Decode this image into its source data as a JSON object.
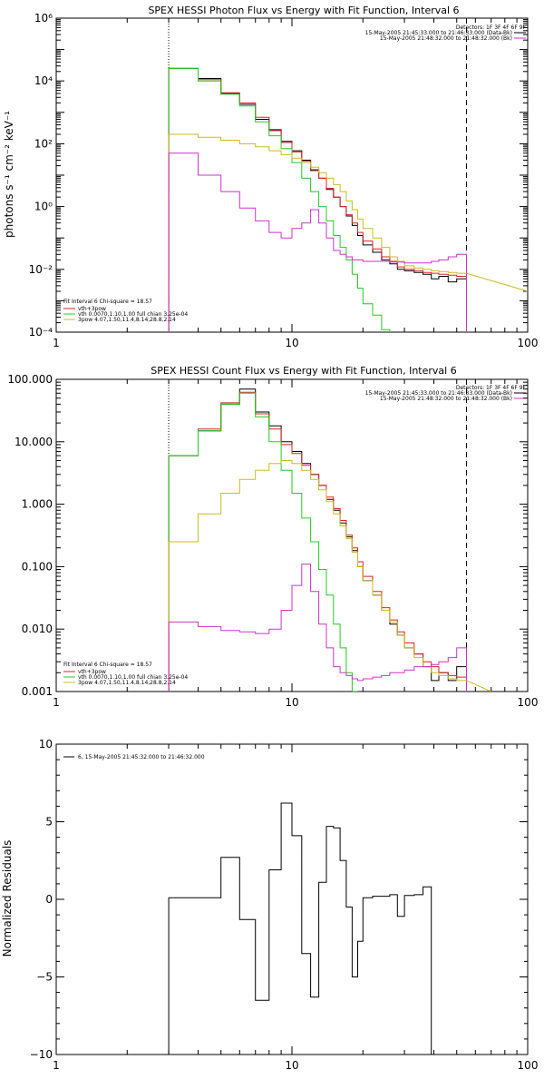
{
  "chart_data": [
    {
      "type": "line",
      "title": "SPEX HESSI Photon Flux vs Energy with Fit Function, Interval 6",
      "ylabel": "photons s⁻¹ cm⁻² keV⁻¹",
      "xlabel": "",
      "xscale": "log",
      "yscale": "log",
      "xlim": [
        1,
        100
      ],
      "ylim": [
        0.0001,
        1000000
      ],
      "xticks": [
        "1",
        "10",
        "100"
      ],
      "yticks": [
        "10⁻⁴",
        "10⁻²",
        "10⁰",
        "10²",
        "10⁴",
        "10⁶"
      ],
      "detectors": "Detectors: 1F 3F 4F 6F 9F",
      "time_lines": [
        {
          "text": "15-May-2005 21:45:33.000 to 21:46:33.000 (Data-Bk)",
          "color": "#000000"
        },
        {
          "text": "15-May-2005 21:48:32.000 to 21:48:32.000 (Bk)",
          "color": "#cc33cc"
        }
      ],
      "fit_legend": {
        "header": "Fit Interval  6    Chi-square = 18.57",
        "items": [
          {
            "text": "vth+3pow",
            "color": "#dd2222"
          },
          {
            "text": "vth 0.0070,1.10,1.00  full chian 3.25e-04",
            "color": "#22cc22"
          },
          {
            "text": "3pow 4.07,1.50,11.4,8.14,28.8,2.14",
            "color": "#ccbb22"
          }
        ]
      },
      "vlines": [
        {
          "x": 3,
          "style": "dotted"
        },
        {
          "x": 55,
          "style": "dashed"
        }
      ],
      "edges": [
        3,
        4,
        5,
        6,
        7,
        8,
        9,
        10,
        11,
        12,
        13,
        14,
        15,
        16,
        17,
        18,
        19,
        20,
        22,
        24,
        26,
        28,
        30,
        33,
        36,
        39,
        42,
        46,
        50,
        55
      ],
      "series": [
        {
          "name": "Data-Bk",
          "color": "#000000",
          "values": [
            25000,
            12000,
            4000,
            1800,
            600,
            280,
            120,
            60,
            30,
            14,
            8,
            3.5,
            2,
            1,
            0.5,
            0.25,
            0.12,
            0.06,
            0.035,
            0.02,
            0.015,
            0.01,
            0.009,
            0.008,
            0.007,
            0.005,
            0.006,
            0.004,
            0.005
          ]
        },
        {
          "name": "vth+3pow",
          "color": "#dd2222",
          "values": [
            25000,
            11000,
            4200,
            2000,
            700,
            260,
            110,
            55,
            28,
            15,
            8,
            3.8,
            2,
            1,
            0.55,
            0.3,
            0.15,
            0.08,
            0.045,
            0.025,
            0.018,
            0.012,
            0.01,
            0.009,
            0.008,
            0.0075,
            0.007,
            0.0065,
            0.006
          ]
        },
        {
          "name": "vth",
          "color": "#22cc22",
          "values": [
            25000,
            10000,
            3800,
            1600,
            500,
            180,
            70,
            25,
            8,
            3,
            1,
            0.35,
            0.12,
            0.05,
            0.02,
            0.007,
            0.0025,
            0.0008,
            0.00035,
            0.00012
          ]
        },
        {
          "name": "3pow",
          "color": "#ccbb22",
          "values": [
            200,
            160,
            130,
            100,
            80,
            60,
            45,
            35,
            25,
            18,
            12,
            8,
            5,
            3,
            1.5,
            0.8,
            0.4,
            0.2,
            0.1,
            0.05,
            0.025,
            0.018,
            0.013,
            0.011,
            0.01,
            0.009,
            0.0085,
            0.008,
            0.0075
          ]
        },
        {
          "name": "Bk",
          "color": "#cc33cc",
          "values": [
            50,
            10,
            3,
            0.9,
            0.35,
            0.15,
            0.1,
            0.2,
            0.3,
            0.8,
            0.3,
            0.1,
            0.04,
            0.03,
            0.025,
            0.02,
            0.02,
            0.018,
            0.018,
            0.018,
            0.017,
            0.017,
            0.016,
            0.016,
            0.016,
            0.018,
            0.02,
            0.025,
            0.03
          ]
        }
      ],
      "tail": {
        "x": [
          55,
          100
        ],
        "values": [
          0.0075,
          0.002
        ],
        "color": "#ccbb22"
      }
    },
    {
      "type": "line",
      "title": "SPEX HESSI Count Flux vs Energy with Fit Function, Interval 6",
      "ylabel": "",
      "xscale": "log",
      "yscale": "log",
      "xlim": [
        1,
        100
      ],
      "ylim": [
        0.001,
        100
      ],
      "xticks": [
        "1",
        "10",
        "100"
      ],
      "yticks": [
        "0.001",
        "0.010",
        "0.100",
        "1.000",
        "10.000",
        "100.000"
      ],
      "detectors": "Detectors: 1F 3F 4F 6F 9F",
      "time_lines": [
        {
          "text": "15-May-2005 21:45:33.000 to 21:46:33.000 (Data-Bk)",
          "color": "#000000"
        },
        {
          "text": "15-May-2005 21:48:32.000 to 21:48:32.000 (Bk)",
          "color": "#cc33cc"
        }
      ],
      "fit_legend": {
        "header": "Fit Interval  6    Chi-square = 18.57",
        "items": [
          {
            "text": "vth+3pow",
            "color": "#dd2222"
          },
          {
            "text": "vth 0.0070,1.10,1.00  full chian 3.25e-04",
            "color": "#22cc22"
          },
          {
            "text": "3pow 4.07,1.50,11.4,8.14,28.8,2.14",
            "color": "#ccbb22"
          }
        ]
      },
      "vlines": [
        {
          "x": 3,
          "style": "dotted"
        },
        {
          "x": 55,
          "style": "dashed"
        }
      ],
      "edges": [
        3,
        4,
        5,
        6,
        7,
        8,
        9,
        10,
        11,
        12,
        13,
        14,
        15,
        16,
        17,
        18,
        19,
        20,
        22,
        24,
        26,
        28,
        30,
        33,
        36,
        39,
        42,
        46,
        50,
        55
      ],
      "series": [
        {
          "name": "Data-Bk",
          "color": "#000000",
          "values": [
            6,
            15,
            40,
            70,
            30,
            18,
            10,
            7,
            4.5,
            3,
            2,
            1.2,
            0.8,
            0.5,
            0.3,
            0.18,
            0.1,
            0.06,
            0.035,
            0.02,
            0.012,
            0.008,
            0.005,
            0.004,
            0.0025,
            0.0015,
            0.002,
            0.0015,
            0.0025
          ]
        },
        {
          "name": "vth+3pow",
          "color": "#dd2222",
          "values": [
            6,
            16,
            42,
            62,
            28,
            16,
            9,
            6.5,
            4.2,
            3,
            2,
            1.3,
            0.85,
            0.55,
            0.32,
            0.2,
            0.12,
            0.07,
            0.04,
            0.022,
            0.014,
            0.009,
            0.006,
            0.004,
            0.003,
            0.0025,
            0.002,
            0.0018,
            0.0017
          ]
        },
        {
          "name": "vth",
          "color": "#22cc22",
          "values": [
            6,
            15,
            40,
            60,
            25,
            10,
            3.5,
            1.5,
            0.6,
            0.25,
            0.09,
            0.035,
            0.012,
            0.005,
            0.002,
            0.0009
          ]
        },
        {
          "name": "3pow",
          "color": "#ccbb22",
          "values": [
            0.25,
            0.7,
            1.5,
            2.5,
            3.5,
            4.5,
            5,
            4.5,
            3.5,
            2.5,
            1.7,
            1.1,
            0.7,
            0.45,
            0.28,
            0.17,
            0.1,
            0.06,
            0.035,
            0.02,
            0.013,
            0.008,
            0.005,
            0.0035,
            0.0025,
            0.002,
            0.0018,
            0.0016,
            0.0015
          ]
        },
        {
          "name": "Bk",
          "color": "#cc33cc",
          "values": [
            0.013,
            0.011,
            0.0095,
            0.009,
            0.0085,
            0.01,
            0.02,
            0.05,
            0.11,
            0.04,
            0.012,
            0.005,
            0.0025,
            0.002,
            0.0018,
            0.0016,
            0.0015,
            0.0016,
            0.0017,
            0.0018,
            0.002,
            0.002,
            0.0022,
            0.0025,
            0.0025,
            0.0027,
            0.003,
            0.0035,
            0.005
          ]
        }
      ],
      "tail": {
        "x": [
          55,
          70
        ],
        "values": [
          0.0015,
          0.001
        ],
        "color": "#ccbb22"
      }
    },
    {
      "type": "line",
      "title": "",
      "ylabel": "Normalized Residuals",
      "xscale": "log",
      "yscale": "linear",
      "xlim": [
        1,
        100
      ],
      "ylim": [
        -10,
        10
      ],
      "xticks": [
        "1",
        "10",
        "100"
      ],
      "yticks": [
        "−10",
        "−5",
        "0",
        "5",
        "10"
      ],
      "legend": "6, 15-May-2005 21:45:32.000 to 21:46:32.000",
      "edges": [
        3,
        4,
        5,
        6,
        7,
        8,
        9,
        10,
        11,
        12,
        13,
        14,
        15,
        16,
        17,
        18,
        19,
        20,
        22,
        24,
        26,
        28,
        30,
        33,
        36,
        39,
        42,
        46,
        50,
        55
      ],
      "series": [
        {
          "name": "residuals",
          "color": "#000000",
          "values": [
            0.1,
            0.1,
            2.7,
            -1.3,
            -6.5,
            1.9,
            6.2,
            4.1,
            -3.5,
            -6.3,
            1.1,
            4.7,
            4.6,
            2.5,
            -0.5,
            -5,
            -2.7,
            0.1,
            0.2,
            0.2,
            0.3,
            -1.1,
            0.25,
            0.3,
            0.8
          ]
        }
      ]
    }
  ]
}
